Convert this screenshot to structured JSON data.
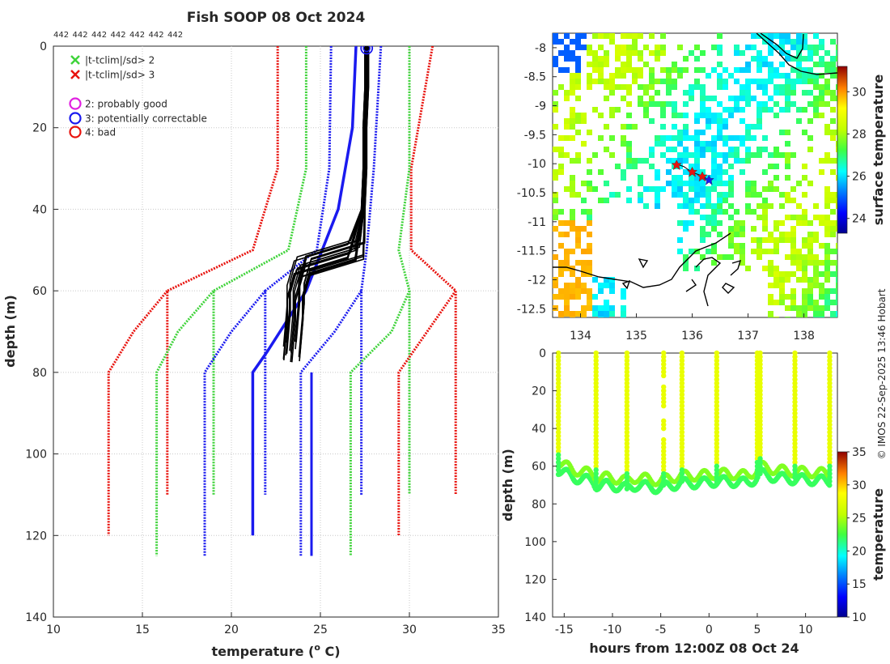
{
  "title": "Fish SOOP 08 Oct 2024",
  "count_labels": [
    "442",
    "442",
    "442",
    "442",
    "442",
    "442",
    "442"
  ],
  "credit": "© IMOS 22-Sep-2025 13:46 Hobart",
  "colors": {
    "red": "#e8140f",
    "green": "#3fd33a",
    "blue": "#1a1aef",
    "black": "#000000",
    "magenta": "#e020e0",
    "coast": "#000000"
  },
  "chart_data": [
    {
      "type": "line",
      "id": "profile",
      "title": "Fish SOOP 08 Oct 2024",
      "xlabel": "temperature (",
      "xlabel_sup": "o",
      "xlabel_end": " C)",
      "ylabel": "depth (m)",
      "xlim": [
        10,
        35
      ],
      "ylim": [
        0,
        140
      ],
      "y_reversed": true,
      "grid": true,
      "xticks": [
        10,
        15,
        20,
        25,
        30,
        35
      ],
      "yticks": [
        0,
        20,
        40,
        60,
        80,
        100,
        120,
        140
      ],
      "legend": [
        {
          "marker": "x",
          "color": "#3fd33a",
          "label": "|t-tclim|/sd> 2"
        },
        {
          "marker": "x",
          "color": "#e8140f",
          "label": "|t-tclim|/sd> 3"
        },
        {
          "marker": "o",
          "color": "#e020e0",
          "label": "2: probably good"
        },
        {
          "marker": "o",
          "color": "#1a1aef",
          "label": "3: potentially correctable"
        },
        {
          "marker": "o",
          "color": "#e8140f",
          "label": "4: bad"
        }
      ],
      "climatology_bands": [
        {
          "name": "clim +3sd",
          "color": "#e8140f",
          "d": [
            0,
            30,
            50,
            60,
            80,
            110
          ],
          "t": [
            31.3,
            30.1,
            30.1,
            32.6,
            32.6,
            32.6
          ]
        },
        {
          "name": "clim -3sd",
          "color": "#e8140f",
          "d": [
            0,
            30,
            50,
            60,
            80,
            110
          ],
          "t": [
            22.6,
            22.6,
            21.2,
            16.4,
            16.4,
            16.4
          ]
        },
        {
          "name": "clim +2sd",
          "color": "#3fd33a",
          "d": [
            0,
            30,
            50,
            60,
            80,
            110
          ],
          "t": [
            30.0,
            30.0,
            29.4,
            30.0,
            30.0,
            30.0
          ]
        },
        {
          "name": "clim -2sd",
          "color": "#3fd33a",
          "d": [
            0,
            30,
            50,
            60,
            80,
            110
          ],
          "t": [
            24.2,
            24.2,
            23.2,
            19.0,
            19.0,
            19.0
          ]
        },
        {
          "name": "clim +1sd",
          "color": "#1a1aef",
          "d": [
            0,
            30,
            50,
            60,
            80,
            110
          ],
          "t": [
            28.4,
            28.0,
            27.6,
            27.3,
            27.3,
            27.3
          ]
        },
        {
          "name": "clim -1sd",
          "color": "#1a1aef",
          "d": [
            0,
            30,
            50,
            60,
            80,
            110
          ],
          "t": [
            25.6,
            25.5,
            24.8,
            21.9,
            21.9,
            21.9
          ]
        },
        {
          "name": "clim +3sd (deep)",
          "color": "#e8140f",
          "d": [
            60,
            70,
            80,
            120
          ],
          "t": [
            32.6,
            31.0,
            29.4,
            29.4
          ]
        },
        {
          "name": "clim -3sd (deep)",
          "color": "#e8140f",
          "d": [
            60,
            70,
            80,
            120
          ],
          "t": [
            16.4,
            14.5,
            13.1,
            13.1
          ]
        },
        {
          "name": "clim +2sd (deep)",
          "color": "#3fd33a",
          "d": [
            60,
            70,
            80,
            125
          ],
          "t": [
            30.0,
            29.0,
            26.7,
            26.7
          ]
        },
        {
          "name": "clim -2sd (deep)",
          "color": "#3fd33a",
          "d": [
            60,
            70,
            80,
            125
          ],
          "t": [
            19.0,
            17.0,
            15.8,
            15.8
          ]
        },
        {
          "name": "clim +1sd (deep)",
          "color": "#1a1aef",
          "d": [
            60,
            70,
            80,
            125
          ],
          "t": [
            27.3,
            25.8,
            23.9,
            23.9
          ]
        },
        {
          "name": "clim -1sd (deep)",
          "color": "#1a1aef",
          "d": [
            60,
            70,
            80,
            125
          ],
          "t": [
            21.9,
            20.0,
            18.5,
            18.5
          ]
        }
      ],
      "climatology_mean": {
        "color": "#1a1aef",
        "d": [
          0,
          20,
          40,
          60,
          75,
          80,
          120
        ],
        "t": [
          27.0,
          26.8,
          26.0,
          24.2,
          22.0,
          21.2,
          21.2
        ]
      },
      "climatology_mean_deep": {
        "color": "#1a1aef",
        "d": [
          80,
          125
        ],
        "t": [
          24.5,
          24.5
        ]
      },
      "profile_median": {
        "color": "#000000",
        "d": [
          0,
          10,
          20,
          30,
          40,
          50,
          54,
          57,
          60,
          65,
          70,
          75
        ],
        "t": [
          27.6,
          27.6,
          27.5,
          27.5,
          27.4,
          27.0,
          24.0,
          23.8,
          23.6,
          23.6,
          23.5,
          23.4
        ]
      },
      "flag_circle": {
        "t": 27.6,
        "d": 0.5,
        "color": "#1a1aef",
        "label": "3: potentially correctable"
      }
    },
    {
      "type": "heatmap",
      "id": "map",
      "title": "",
      "xlabel": "",
      "ylabel": "",
      "xlim": [
        133.5,
        138.6
      ],
      "ylim": [
        -12.65,
        -7.75
      ],
      "xticks": [
        134,
        135,
        136,
        137,
        138
      ],
      "yticks": [
        -8,
        -8.5,
        -9,
        -9.5,
        -10,
        -10.5,
        -11,
        -11.5,
        -12,
        -12.5
      ],
      "colorbar": {
        "label": "surface temperature",
        "range": [
          23.3,
          31.2
        ],
        "ticks": [
          24,
          26,
          28,
          30
        ]
      },
      "track": [
        [
          135.7,
          -10.0
        ],
        [
          135.85,
          -10.05
        ],
        [
          136.0,
          -10.15
        ],
        [
          136.15,
          -10.2
        ],
        [
          136.3,
          -10.28
        ]
      ],
      "track_markers": [
        {
          "lon": 135.72,
          "lat": -10.02,
          "color": "#e8140f"
        },
        {
          "lon": 136.0,
          "lat": -10.14,
          "color": "#e8140f"
        },
        {
          "lon": 136.18,
          "lat": -10.22,
          "color": "#e8140f"
        },
        {
          "lon": 136.3,
          "lat": -10.28,
          "color": "#1a1aef"
        }
      ]
    },
    {
      "type": "scatter",
      "id": "timeseries",
      "xlabel": "hours from 12:00Z 08 Oct 24",
      "ylabel": "depth (m)",
      "xlim": [
        -16.2,
        13.3
      ],
      "ylim": [
        0,
        140
      ],
      "y_reversed": true,
      "xticks": [
        -15,
        -10,
        -5,
        0,
        5,
        10
      ],
      "yticks": [
        0,
        20,
        40,
        60,
        80,
        100,
        120,
        140
      ],
      "colorbar": {
        "label": "temperature",
        "range": [
          10,
          35
        ],
        "ticks": [
          10,
          15,
          20,
          25,
          30,
          35
        ]
      },
      "profile_times": [
        -15.6,
        -11.7,
        -8.5,
        -4.7,
        -2.8,
        0.8,
        5.0,
        5.3,
        8.9,
        12.5
      ],
      "bottom_depth": {
        "hours": [
          -15.6,
          -14,
          -12,
          -11.7,
          -10.5,
          -9,
          -8.5,
          -7.5,
          -6,
          -5,
          -4.7,
          -2.8,
          -1,
          0.8,
          2,
          4,
          5.0,
          5.3,
          7,
          8.9,
          10,
          12.5
        ],
        "depth": [
          62,
          66,
          68,
          70,
          70,
          71,
          72,
          70,
          71,
          72,
          71,
          69,
          69,
          68,
          68,
          69,
          66,
          64,
          66,
          67,
          67,
          68
        ]
      },
      "surface_temp": 27.6,
      "bottom_temp": 22.0
    }
  ]
}
